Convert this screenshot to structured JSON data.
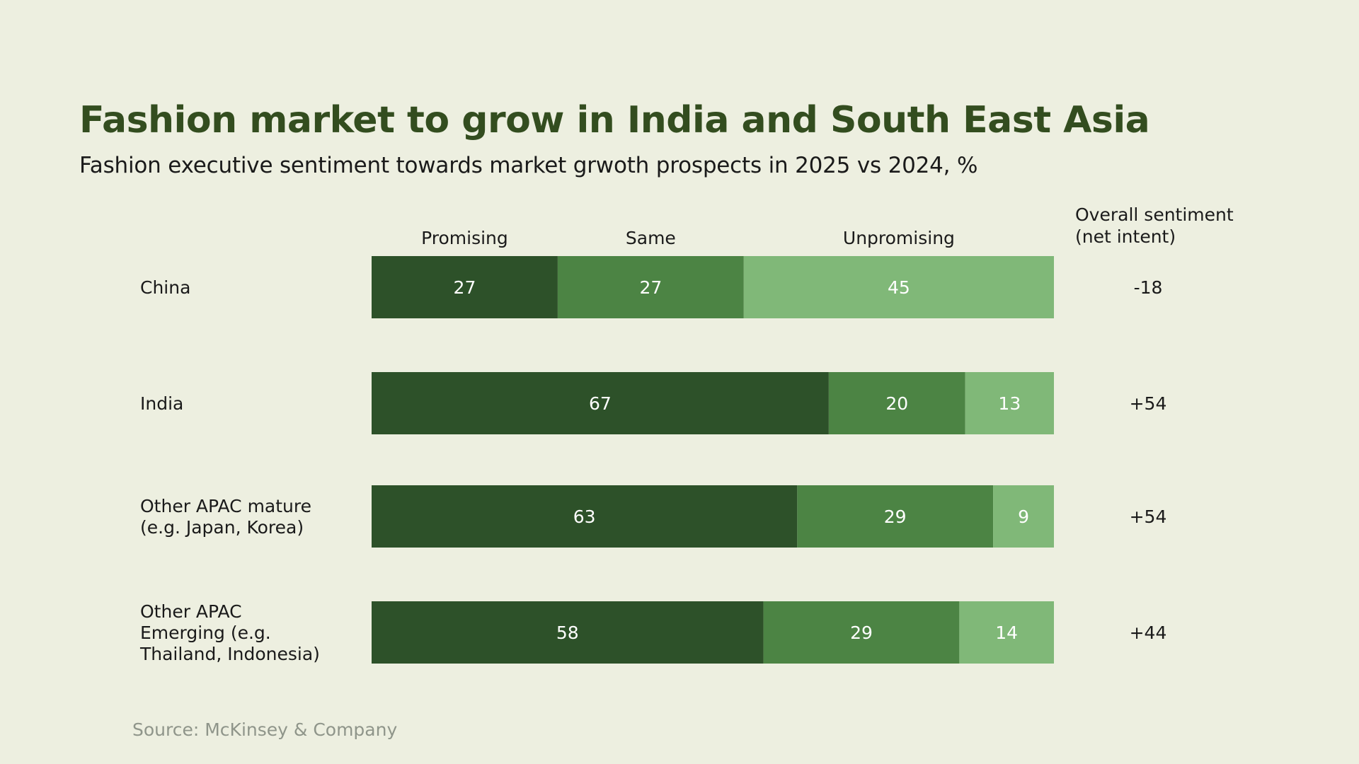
{
  "chart_data": {
    "type": "bar",
    "orientation": "horizontal",
    "stacked": true,
    "title": "Fashion market to grow in India and South East Asia",
    "subtitle": "Fashion executive sentiment towards market grwoth prospects in 2025 vs 2024, %",
    "categories": [
      [
        "China"
      ],
      [
        "India"
      ],
      [
        "Other APAC mature",
        "(e.g. Japan, Korea)"
      ],
      [
        "Other APAC",
        "Emerging (e.g.",
        "Thailand, Indonesia)"
      ]
    ],
    "series": [
      {
        "name": "Promising",
        "color": "#2d5129",
        "values": [
          27,
          67,
          63,
          58
        ]
      },
      {
        "name": "Same",
        "color": "#4c8444",
        "values": [
          27,
          20,
          29,
          29
        ]
      },
      {
        "name": "Unpromising",
        "color": "#80b878",
        "values": [
          45,
          13,
          9,
          14
        ]
      }
    ],
    "net_sentiment_header": [
      "Overall sentiment",
      "(net intent)"
    ],
    "net_sentiment": [
      "-18",
      "+54",
      "+54",
      "+44"
    ],
    "legend_placement": "top",
    "grid": false,
    "xlabel": "",
    "ylabel": ""
  },
  "source": "Source: McKinsey & Company",
  "colors": {
    "background": "#edefe0",
    "title": "#334d1f",
    "label_text": "#1a1a1a",
    "bar_label": "#ffffff",
    "source_text": "#8f958a"
  }
}
